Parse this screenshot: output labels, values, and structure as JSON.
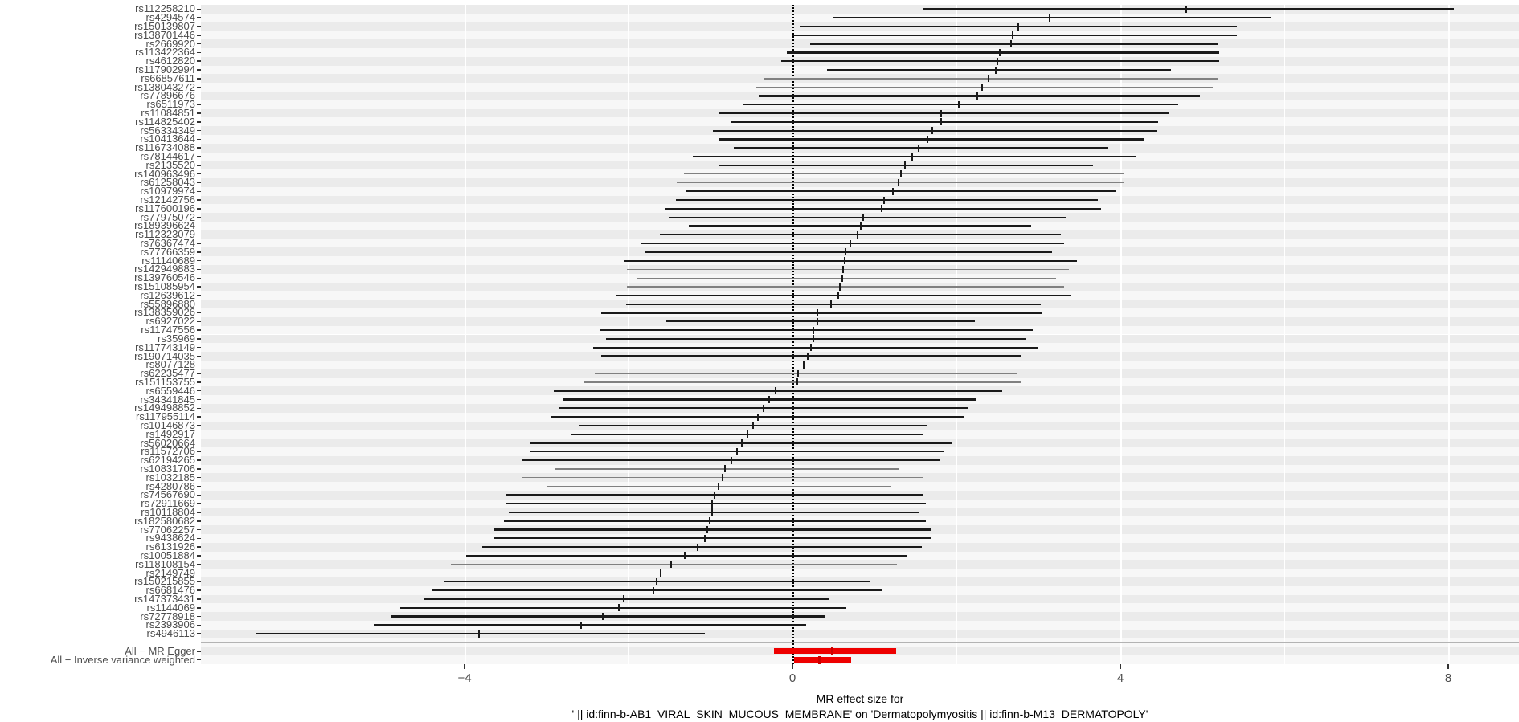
{
  "chart_data": {
    "type": "forest",
    "title": "",
    "xlabel_line1": "MR effect size for",
    "xlabel_line2": "' || id:finn-b-AB1_VIRAL_SKIN_MUCOUS_MEMBRANE' on 'Dermatopolymyositis || id:finn-b-M13_DERMATOPOLY'",
    "x_ticks": [
      -4,
      0,
      4,
      8
    ],
    "x_tick_labels": [
      "−4",
      "0",
      "4",
      "8"
    ],
    "x_minor_ticks": [
      -6,
      -2,
      2,
      6
    ],
    "xlim": [
      -7.2,
      8.85
    ],
    "vline_at": 0,
    "legend": "none",
    "grid": "on",
    "colors": {
      "stripe_dark": "#ebebeb",
      "stripe_light": "#f7f7f7",
      "ci_line": "#1a1a1a",
      "ci_line_thin": "#808080",
      "label_text": "#4d4d4d",
      "summary_bar": "#ee0000",
      "summary_point": "#cc0000",
      "separator": "#b3b3b3"
    },
    "rows": [
      {
        "label": "rs112258210",
        "lo": 1.6,
        "est": 4.8,
        "hi": 8.07
      },
      {
        "label": "rs4294574",
        "lo": 0.49,
        "est": 3.14,
        "hi": 5.84
      },
      {
        "label": "rs150139807",
        "lo": 0.1,
        "est": 2.75,
        "hi": 5.42
      },
      {
        "label": "rs138701446",
        "lo": 0.0,
        "est": 2.69,
        "hi": 5.42
      },
      {
        "label": "rs2669920",
        "lo": 0.22,
        "est": 2.67,
        "hi": 5.19
      },
      {
        "label": "rs113422364",
        "lo": -0.07,
        "est": 2.53,
        "hi": 5.21
      },
      {
        "label": "rs4612820",
        "lo": -0.14,
        "est": 2.5,
        "hi": 5.21
      },
      {
        "label": "rs117902994",
        "lo": 0.42,
        "est": 2.48,
        "hi": 4.62
      },
      {
        "label": "rs66857611",
        "lo": -0.35,
        "est": 2.39,
        "hi": 5.19,
        "thin": true
      },
      {
        "label": "rs138043272",
        "lo": -0.44,
        "est": 2.31,
        "hi": 5.13,
        "thin": true
      },
      {
        "label": "rs77896676",
        "lo": -0.41,
        "est": 2.25,
        "hi": 4.97
      },
      {
        "label": "rs6511973",
        "lo": -0.6,
        "est": 2.03,
        "hi": 4.71
      },
      {
        "label": "rs11084851",
        "lo": -0.89,
        "est": 1.81,
        "hi": 4.6
      },
      {
        "label": "rs114825402",
        "lo": -0.75,
        "est": 1.81,
        "hi": 4.46
      },
      {
        "label": "rs56334349",
        "lo": -0.97,
        "est": 1.71,
        "hi": 4.45
      },
      {
        "label": "rs10413644",
        "lo": -0.9,
        "est": 1.65,
        "hi": 4.29
      },
      {
        "label": "rs116734088",
        "lo": -0.72,
        "est": 1.54,
        "hi": 3.84
      },
      {
        "label": "rs78144617",
        "lo": -1.22,
        "est": 1.46,
        "hi": 4.19
      },
      {
        "label": "rs2135520",
        "lo": -0.89,
        "est": 1.37,
        "hi": 3.67
      },
      {
        "label": "rs140963496",
        "lo": -1.32,
        "est": 1.32,
        "hi": 4.05,
        "thin": true
      },
      {
        "label": "rs61258043",
        "lo": -1.41,
        "est": 1.29,
        "hi": 4.05,
        "thin": true
      },
      {
        "label": "rs10979974",
        "lo": -1.29,
        "est": 1.23,
        "hi": 3.94
      },
      {
        "label": "rs12142756",
        "lo": -1.42,
        "est": 1.12,
        "hi": 3.73
      },
      {
        "label": "rs117600196",
        "lo": -1.55,
        "est": 1.09,
        "hi": 3.76
      },
      {
        "label": "rs77975072",
        "lo": -1.5,
        "est": 0.86,
        "hi": 3.33
      },
      {
        "label": "rs189396624",
        "lo": -1.26,
        "est": 0.83,
        "hi": 2.91
      },
      {
        "label": "rs112323079",
        "lo": -1.62,
        "est": 0.79,
        "hi": 3.27
      },
      {
        "label": "rs76367474",
        "lo": -1.84,
        "est": 0.71,
        "hi": 3.31
      },
      {
        "label": "rs77766359",
        "lo": -1.79,
        "est": 0.65,
        "hi": 3.17
      },
      {
        "label": "rs11140689",
        "lo": -2.05,
        "est": 0.64,
        "hi": 3.47
      },
      {
        "label": "rs142949883",
        "lo": -2.02,
        "est": 0.62,
        "hi": 3.37,
        "thin": true
      },
      {
        "label": "rs139760546",
        "lo": -1.9,
        "est": 0.61,
        "hi": 3.22,
        "thin": true
      },
      {
        "label": "rs151085954",
        "lo": -2.02,
        "est": 0.58,
        "hi": 3.31,
        "thin": true
      },
      {
        "label": "rs12639612",
        "lo": -2.16,
        "est": 0.56,
        "hi": 3.39
      },
      {
        "label": "rs55896880",
        "lo": -2.03,
        "est": 0.47,
        "hi": 3.03
      },
      {
        "label": "rs138359026",
        "lo": -2.33,
        "est": 0.3,
        "hi": 3.04
      },
      {
        "label": "rs6927022",
        "lo": -1.54,
        "est": 0.3,
        "hi": 2.23
      },
      {
        "label": "rs11747556",
        "lo": -2.34,
        "est": 0.25,
        "hi": 2.93
      },
      {
        "label": "rs35969",
        "lo": -2.27,
        "est": 0.25,
        "hi": 2.85
      },
      {
        "label": "rs117743149",
        "lo": -2.43,
        "est": 0.23,
        "hi": 2.99
      },
      {
        "label": "rs190714035",
        "lo": -2.33,
        "est": 0.19,
        "hi": 2.78
      },
      {
        "label": "rs8077128",
        "lo": -2.5,
        "est": 0.14,
        "hi": 2.92,
        "thin": true
      },
      {
        "label": "rs62235477",
        "lo": -2.41,
        "est": 0.07,
        "hi": 2.74,
        "thin": true
      },
      {
        "label": "rs151153755",
        "lo": -2.54,
        "est": 0.06,
        "hi": 2.78,
        "thin": true
      },
      {
        "label": "rs6559446",
        "lo": -2.91,
        "est": -0.21,
        "hi": 2.56
      },
      {
        "label": "rs34341845",
        "lo": -2.8,
        "est": -0.28,
        "hi": 2.24
      },
      {
        "label": "rs149498852",
        "lo": -2.85,
        "est": -0.35,
        "hi": 2.15
      },
      {
        "label": "rs117955114",
        "lo": -2.95,
        "est": -0.42,
        "hi": 2.1
      },
      {
        "label": "rs10146873",
        "lo": -2.6,
        "est": -0.48,
        "hi": 1.65
      },
      {
        "label": "rs1492917",
        "lo": -2.7,
        "est": -0.55,
        "hi": 1.6
      },
      {
        "label": "rs56020664",
        "lo": -3.2,
        "est": -0.62,
        "hi": 1.95
      },
      {
        "label": "rs11572706",
        "lo": -3.2,
        "est": -0.68,
        "hi": 1.85
      },
      {
        "label": "rs62194265",
        "lo": -3.3,
        "est": -0.75,
        "hi": 1.8
      },
      {
        "label": "rs10831706",
        "lo": -2.9,
        "est": -0.82,
        "hi": 1.3,
        "thin": true
      },
      {
        "label": "rs1032185",
        "lo": -3.3,
        "est": -0.85,
        "hi": 1.6,
        "thin": true
      },
      {
        "label": "rs4280786",
        "lo": -3.0,
        "est": -0.9,
        "hi": 1.2,
        "thin": true
      },
      {
        "label": "rs74567690",
        "lo": -3.5,
        "est": -0.95,
        "hi": 1.6
      },
      {
        "label": "rs72911669",
        "lo": -3.49,
        "est": -0.98,
        "hi": 1.63
      },
      {
        "label": "rs10118804",
        "lo": -3.46,
        "est": -0.98,
        "hi": 1.55
      },
      {
        "label": "rs182580682",
        "lo": -3.52,
        "est": -1.01,
        "hi": 1.63
      },
      {
        "label": "rs77062257",
        "lo": -3.64,
        "est": -1.04,
        "hi": 1.69
      },
      {
        "label": "rs9438624",
        "lo": -3.64,
        "est": -1.07,
        "hi": 1.69
      },
      {
        "label": "rs6131926",
        "lo": -3.78,
        "est": -1.16,
        "hi": 1.58
      },
      {
        "label": "rs10051884",
        "lo": -3.98,
        "est": -1.31,
        "hi": 1.39
      },
      {
        "label": "rs118108154",
        "lo": -4.17,
        "est": -1.48,
        "hi": 1.27,
        "thin": true
      },
      {
        "label": "rs2149749",
        "lo": -4.28,
        "est": -1.61,
        "hi": 1.16,
        "thin": true
      },
      {
        "label": "rs150215855",
        "lo": -4.25,
        "est": -1.66,
        "hi": 0.95
      },
      {
        "label": "rs6681476",
        "lo": -4.39,
        "est": -1.7,
        "hi": 1.09
      },
      {
        "label": "rs147373431",
        "lo": -4.5,
        "est": -2.06,
        "hi": 0.44
      },
      {
        "label": "rs1144069",
        "lo": -4.78,
        "est": -2.12,
        "hi": 0.66
      },
      {
        "label": "rs72778918",
        "lo": -4.9,
        "est": -2.31,
        "hi": 0.39
      },
      {
        "label": "rs2393906",
        "lo": -5.11,
        "est": -2.58,
        "hi": 0.17
      },
      {
        "label": "rs4946113",
        "lo": -6.54,
        "est": -3.82,
        "hi": -1.07
      }
    ],
    "summary_rows": [
      {
        "label": "All − MR Egger",
        "lo": -0.23,
        "est": 0.48,
        "hi": 1.26
      },
      {
        "label": "All − Inverse variance weighted",
        "lo": 0.02,
        "est": 0.33,
        "hi": 0.72
      }
    ]
  }
}
